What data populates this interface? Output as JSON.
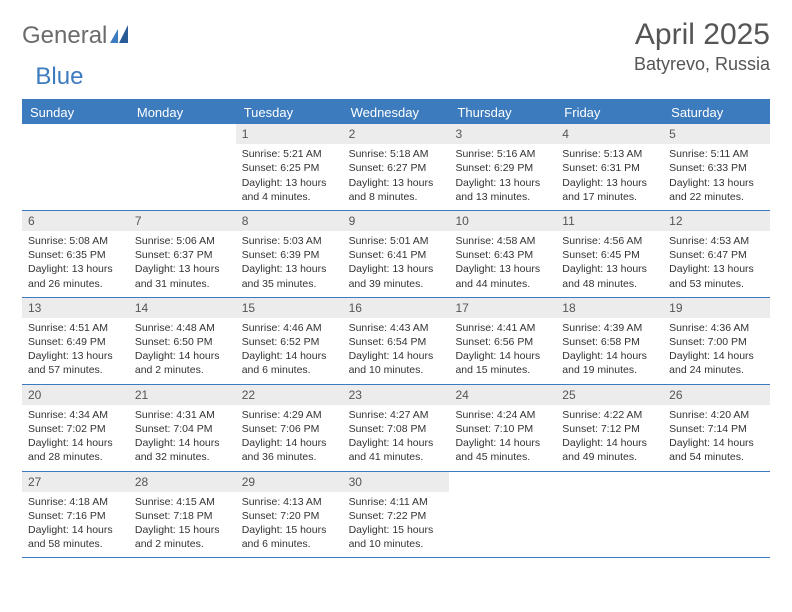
{
  "logo": {
    "part1": "General",
    "part2": "Blue"
  },
  "title": "April 2025",
  "location": "Batyrevo, Russia",
  "colors": {
    "accent": "#3d7bbf",
    "header_bg": "#3d7bbf",
    "header_text": "#ffffff",
    "daynum_bg": "#ececec",
    "text": "#333333",
    "title_text": "#555555"
  },
  "day_names": [
    "Sunday",
    "Monday",
    "Tuesday",
    "Wednesday",
    "Thursday",
    "Friday",
    "Saturday"
  ],
  "weeks": [
    [
      {
        "n": "",
        "sunrise": "",
        "sunset": "",
        "daylight": ""
      },
      {
        "n": "",
        "sunrise": "",
        "sunset": "",
        "daylight": ""
      },
      {
        "n": "1",
        "sunrise": "Sunrise: 5:21 AM",
        "sunset": "Sunset: 6:25 PM",
        "daylight": "Daylight: 13 hours and 4 minutes."
      },
      {
        "n": "2",
        "sunrise": "Sunrise: 5:18 AM",
        "sunset": "Sunset: 6:27 PM",
        "daylight": "Daylight: 13 hours and 8 minutes."
      },
      {
        "n": "3",
        "sunrise": "Sunrise: 5:16 AM",
        "sunset": "Sunset: 6:29 PM",
        "daylight": "Daylight: 13 hours and 13 minutes."
      },
      {
        "n": "4",
        "sunrise": "Sunrise: 5:13 AM",
        "sunset": "Sunset: 6:31 PM",
        "daylight": "Daylight: 13 hours and 17 minutes."
      },
      {
        "n": "5",
        "sunrise": "Sunrise: 5:11 AM",
        "sunset": "Sunset: 6:33 PM",
        "daylight": "Daylight: 13 hours and 22 minutes."
      }
    ],
    [
      {
        "n": "6",
        "sunrise": "Sunrise: 5:08 AM",
        "sunset": "Sunset: 6:35 PM",
        "daylight": "Daylight: 13 hours and 26 minutes."
      },
      {
        "n": "7",
        "sunrise": "Sunrise: 5:06 AM",
        "sunset": "Sunset: 6:37 PM",
        "daylight": "Daylight: 13 hours and 31 minutes."
      },
      {
        "n": "8",
        "sunrise": "Sunrise: 5:03 AM",
        "sunset": "Sunset: 6:39 PM",
        "daylight": "Daylight: 13 hours and 35 minutes."
      },
      {
        "n": "9",
        "sunrise": "Sunrise: 5:01 AM",
        "sunset": "Sunset: 6:41 PM",
        "daylight": "Daylight: 13 hours and 39 minutes."
      },
      {
        "n": "10",
        "sunrise": "Sunrise: 4:58 AM",
        "sunset": "Sunset: 6:43 PM",
        "daylight": "Daylight: 13 hours and 44 minutes."
      },
      {
        "n": "11",
        "sunrise": "Sunrise: 4:56 AM",
        "sunset": "Sunset: 6:45 PM",
        "daylight": "Daylight: 13 hours and 48 minutes."
      },
      {
        "n": "12",
        "sunrise": "Sunrise: 4:53 AM",
        "sunset": "Sunset: 6:47 PM",
        "daylight": "Daylight: 13 hours and 53 minutes."
      }
    ],
    [
      {
        "n": "13",
        "sunrise": "Sunrise: 4:51 AM",
        "sunset": "Sunset: 6:49 PM",
        "daylight": "Daylight: 13 hours and 57 minutes."
      },
      {
        "n": "14",
        "sunrise": "Sunrise: 4:48 AM",
        "sunset": "Sunset: 6:50 PM",
        "daylight": "Daylight: 14 hours and 2 minutes."
      },
      {
        "n": "15",
        "sunrise": "Sunrise: 4:46 AM",
        "sunset": "Sunset: 6:52 PM",
        "daylight": "Daylight: 14 hours and 6 minutes."
      },
      {
        "n": "16",
        "sunrise": "Sunrise: 4:43 AM",
        "sunset": "Sunset: 6:54 PM",
        "daylight": "Daylight: 14 hours and 10 minutes."
      },
      {
        "n": "17",
        "sunrise": "Sunrise: 4:41 AM",
        "sunset": "Sunset: 6:56 PM",
        "daylight": "Daylight: 14 hours and 15 minutes."
      },
      {
        "n": "18",
        "sunrise": "Sunrise: 4:39 AM",
        "sunset": "Sunset: 6:58 PM",
        "daylight": "Daylight: 14 hours and 19 minutes."
      },
      {
        "n": "19",
        "sunrise": "Sunrise: 4:36 AM",
        "sunset": "Sunset: 7:00 PM",
        "daylight": "Daylight: 14 hours and 24 minutes."
      }
    ],
    [
      {
        "n": "20",
        "sunrise": "Sunrise: 4:34 AM",
        "sunset": "Sunset: 7:02 PM",
        "daylight": "Daylight: 14 hours and 28 minutes."
      },
      {
        "n": "21",
        "sunrise": "Sunrise: 4:31 AM",
        "sunset": "Sunset: 7:04 PM",
        "daylight": "Daylight: 14 hours and 32 minutes."
      },
      {
        "n": "22",
        "sunrise": "Sunrise: 4:29 AM",
        "sunset": "Sunset: 7:06 PM",
        "daylight": "Daylight: 14 hours and 36 minutes."
      },
      {
        "n": "23",
        "sunrise": "Sunrise: 4:27 AM",
        "sunset": "Sunset: 7:08 PM",
        "daylight": "Daylight: 14 hours and 41 minutes."
      },
      {
        "n": "24",
        "sunrise": "Sunrise: 4:24 AM",
        "sunset": "Sunset: 7:10 PM",
        "daylight": "Daylight: 14 hours and 45 minutes."
      },
      {
        "n": "25",
        "sunrise": "Sunrise: 4:22 AM",
        "sunset": "Sunset: 7:12 PM",
        "daylight": "Daylight: 14 hours and 49 minutes."
      },
      {
        "n": "26",
        "sunrise": "Sunrise: 4:20 AM",
        "sunset": "Sunset: 7:14 PM",
        "daylight": "Daylight: 14 hours and 54 minutes."
      }
    ],
    [
      {
        "n": "27",
        "sunrise": "Sunrise: 4:18 AM",
        "sunset": "Sunset: 7:16 PM",
        "daylight": "Daylight: 14 hours and 58 minutes."
      },
      {
        "n": "28",
        "sunrise": "Sunrise: 4:15 AM",
        "sunset": "Sunset: 7:18 PM",
        "daylight": "Daylight: 15 hours and 2 minutes."
      },
      {
        "n": "29",
        "sunrise": "Sunrise: 4:13 AM",
        "sunset": "Sunset: 7:20 PM",
        "daylight": "Daylight: 15 hours and 6 minutes."
      },
      {
        "n": "30",
        "sunrise": "Sunrise: 4:11 AM",
        "sunset": "Sunset: 7:22 PM",
        "daylight": "Daylight: 15 hours and 10 minutes."
      },
      {
        "n": "",
        "sunrise": "",
        "sunset": "",
        "daylight": ""
      },
      {
        "n": "",
        "sunrise": "",
        "sunset": "",
        "daylight": ""
      },
      {
        "n": "",
        "sunrise": "",
        "sunset": "",
        "daylight": ""
      }
    ]
  ]
}
